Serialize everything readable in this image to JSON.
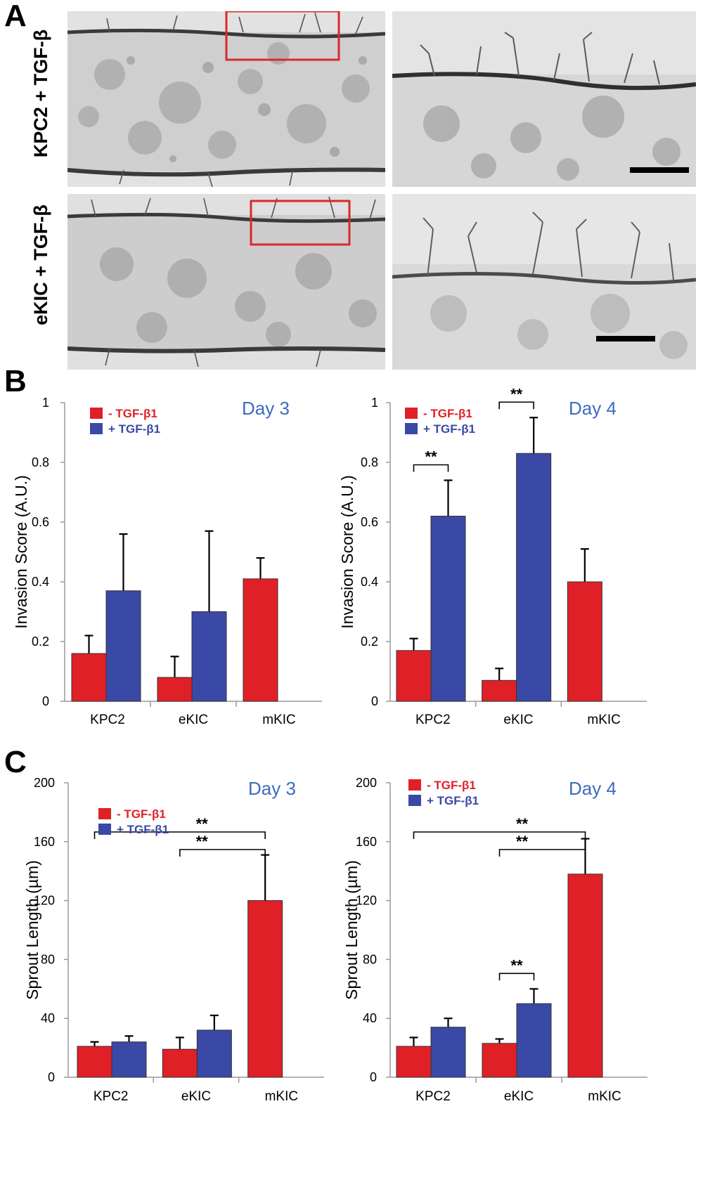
{
  "panels": {
    "a": "A",
    "b": "B",
    "c": "C"
  },
  "panel_a": {
    "row_labels": [
      "KPC2 + TGF-β",
      "eKIC + TGF-β"
    ]
  },
  "colors": {
    "minus": "#e02027",
    "plus": "#3a49a6",
    "day_title": "#3d6bbf",
    "box": "#d82a2a"
  },
  "legend": {
    "minus": "- TGF-β1",
    "plus": "+ TGF-β1"
  },
  "significance_label": "**",
  "chart_data": [
    {
      "id": "B-day3",
      "type": "bar",
      "title": "Day 3",
      "ylabel": "Invasion Score (A.U.)",
      "ylim": [
        0,
        1
      ],
      "yticks": [
        0,
        0.2,
        0.4,
        0.6,
        0.8,
        1
      ],
      "ytick_labels": [
        "0",
        "0.2",
        "0.4",
        "0.6",
        "0.8",
        "1"
      ],
      "categories": [
        "KPC2",
        "eKIC",
        "mKIC"
      ],
      "series": [
        {
          "name": "- TGF-β1",
          "values": [
            0.16,
            0.08,
            0.41
          ],
          "errors": [
            0.06,
            0.07,
            0.07
          ]
        },
        {
          "name": "+ TGF-β1",
          "values": [
            0.37,
            0.3,
            null
          ],
          "errors": [
            0.19,
            0.27,
            null
          ]
        }
      ],
      "significance": []
    },
    {
      "id": "B-day4",
      "type": "bar",
      "title": "Day 4",
      "ylabel": "Invasion Score (A.U.)",
      "ylim": [
        0,
        1
      ],
      "yticks": [
        0,
        0.2,
        0.4,
        0.6,
        0.8,
        1
      ],
      "ytick_labels": [
        "0",
        "0.2",
        "0.4",
        "0.6",
        "0.8",
        "1"
      ],
      "categories": [
        "KPC2",
        "eKIC",
        "mKIC"
      ],
      "series": [
        {
          "name": "- TGF-β1",
          "values": [
            0.17,
            0.07,
            0.4
          ],
          "errors": [
            0.04,
            0.04,
            0.11
          ]
        },
        {
          "name": "+ TGF-β1",
          "values": [
            0.62,
            0.83,
            null
          ],
          "errors": [
            0.12,
            0.12,
            null
          ]
        }
      ],
      "significance": [
        {
          "from": [
            0,
            0
          ],
          "to": [
            0,
            1
          ],
          "label": "**"
        },
        {
          "from": [
            1,
            0
          ],
          "to": [
            1,
            1
          ],
          "label": "**"
        }
      ]
    },
    {
      "id": "C-day3",
      "type": "bar",
      "title": "Day 3",
      "ylabel": "Sprout Length (µm)",
      "ylim": [
        0,
        200
      ],
      "yticks": [
        0,
        40,
        80,
        120,
        160,
        200
      ],
      "ytick_labels": [
        "0",
        "40",
        "80",
        "120",
        "160",
        "200"
      ],
      "categories": [
        "KPC2",
        "eKIC",
        "mKIC"
      ],
      "series": [
        {
          "name": "- TGF-β1",
          "values": [
            21,
            19,
            120
          ],
          "errors": [
            3,
            8,
            31
          ]
        },
        {
          "name": "+ TGF-β1",
          "values": [
            24,
            32,
            null
          ],
          "errors": [
            4,
            10,
            null
          ]
        }
      ],
      "significance": [
        {
          "from": [
            0,
            0
          ],
          "to": [
            2,
            0
          ],
          "label": "**"
        },
        {
          "from": [
            1,
            0
          ],
          "to": [
            2,
            0
          ],
          "label": "**"
        }
      ]
    },
    {
      "id": "C-day4",
      "type": "bar",
      "title": "Day 4",
      "ylabel": "Sprout Length (µm)",
      "ylim": [
        0,
        200
      ],
      "yticks": [
        0,
        40,
        80,
        120,
        160,
        200
      ],
      "ytick_labels": [
        "0",
        "40",
        "80",
        "120",
        "160",
        "200"
      ],
      "categories": [
        "KPC2",
        "eKIC",
        "mKIC"
      ],
      "series": [
        {
          "name": "- TGF-β1",
          "values": [
            21,
            23,
            138
          ],
          "errors": [
            6,
            3,
            24
          ]
        },
        {
          "name": "+ TGF-β1",
          "values": [
            34,
            50,
            null
          ],
          "errors": [
            6,
            10,
            null
          ]
        }
      ],
      "significance": [
        {
          "from": [
            0,
            0
          ],
          "to": [
            2,
            0
          ],
          "label": "**"
        },
        {
          "from": [
            1,
            0
          ],
          "to": [
            2,
            0
          ],
          "label": "**"
        },
        {
          "from": [
            1,
            0
          ],
          "to": [
            1,
            1
          ],
          "label": "**"
        }
      ]
    }
  ]
}
